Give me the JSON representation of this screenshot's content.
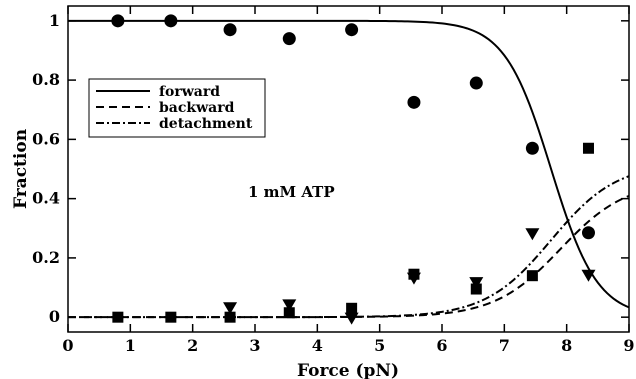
{
  "chart_data": {
    "type": "scatter",
    "title": "",
    "xlabel": "Force (pN)",
    "ylabel": "Fraction",
    "xlim": [
      0,
      9
    ],
    "ylim": [
      -0.05,
      1.05
    ],
    "x_ticks": [
      0,
      1,
      2,
      3,
      4,
      5,
      6,
      7,
      8,
      9
    ],
    "y_ticks": [
      0,
      0.2,
      0.4,
      0.6,
      0.8,
      1
    ],
    "annotation": "1 mM ATP",
    "legend_position": "top-left",
    "grid": false,
    "lines": [
      {
        "name": "forward",
        "style": "solid"
      },
      {
        "name": "backward",
        "style": "dashed"
      },
      {
        "name": "detachment",
        "style": "dash-dot"
      }
    ],
    "points": [
      {
        "marker": "circle",
        "x": [
          0.8,
          1.65,
          2.6,
          3.55,
          4.55,
          5.55,
          6.55,
          7.45,
          8.35
        ],
        "y": [
          1.0,
          1.0,
          0.97,
          0.94,
          0.97,
          0.725,
          0.79,
          0.57,
          0.285
        ]
      },
      {
        "marker": "square",
        "x": [
          0.8,
          1.65,
          2.6,
          3.55,
          4.55,
          5.55,
          6.55,
          7.45,
          8.35
        ],
        "y": [
          0.0,
          0.0,
          0.0,
          0.015,
          0.03,
          0.145,
          0.095,
          0.14,
          0.57
        ]
      },
      {
        "marker": "triangle-down",
        "x": [
          2.6,
          3.55,
          4.55,
          5.55,
          6.55,
          7.45,
          8.35
        ],
        "y": [
          0.03,
          0.04,
          -0.005,
          0.13,
          0.115,
          0.28,
          0.14
        ]
      }
    ]
  }
}
